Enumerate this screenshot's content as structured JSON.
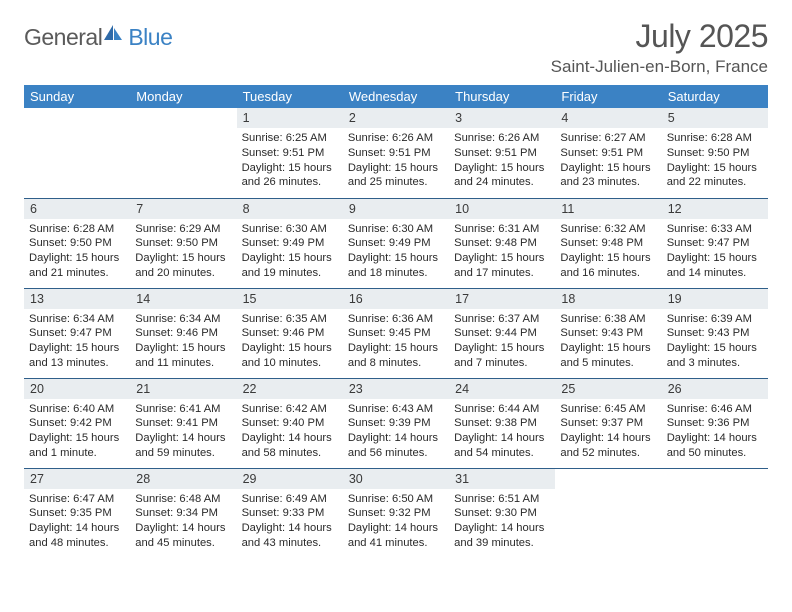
{
  "logo": {
    "general": "General",
    "blue": "Blue"
  },
  "title": "July 2025",
  "location": "Saint-Julien-en-Born, France",
  "colors": {
    "header_bg": "#3b82c4",
    "header_text": "#ffffff",
    "daynum_bg": "#e9edf0",
    "row_border": "#2f5f8a",
    "text": "#2a2a2a",
    "title_text": "#555555"
  },
  "weekdays": [
    "Sunday",
    "Monday",
    "Tuesday",
    "Wednesday",
    "Thursday",
    "Friday",
    "Saturday"
  ],
  "first_weekday_index": 2,
  "days": [
    {
      "n": 1,
      "sunrise": "6:25 AM",
      "sunset": "9:51 PM",
      "daylight": "15 hours and 26 minutes."
    },
    {
      "n": 2,
      "sunrise": "6:26 AM",
      "sunset": "9:51 PM",
      "daylight": "15 hours and 25 minutes."
    },
    {
      "n": 3,
      "sunrise": "6:26 AM",
      "sunset": "9:51 PM",
      "daylight": "15 hours and 24 minutes."
    },
    {
      "n": 4,
      "sunrise": "6:27 AM",
      "sunset": "9:51 PM",
      "daylight": "15 hours and 23 minutes."
    },
    {
      "n": 5,
      "sunrise": "6:28 AM",
      "sunset": "9:50 PM",
      "daylight": "15 hours and 22 minutes."
    },
    {
      "n": 6,
      "sunrise": "6:28 AM",
      "sunset": "9:50 PM",
      "daylight": "15 hours and 21 minutes."
    },
    {
      "n": 7,
      "sunrise": "6:29 AM",
      "sunset": "9:50 PM",
      "daylight": "15 hours and 20 minutes."
    },
    {
      "n": 8,
      "sunrise": "6:30 AM",
      "sunset": "9:49 PM",
      "daylight": "15 hours and 19 minutes."
    },
    {
      "n": 9,
      "sunrise": "6:30 AM",
      "sunset": "9:49 PM",
      "daylight": "15 hours and 18 minutes."
    },
    {
      "n": 10,
      "sunrise": "6:31 AM",
      "sunset": "9:48 PM",
      "daylight": "15 hours and 17 minutes."
    },
    {
      "n": 11,
      "sunrise": "6:32 AM",
      "sunset": "9:48 PM",
      "daylight": "15 hours and 16 minutes."
    },
    {
      "n": 12,
      "sunrise": "6:33 AM",
      "sunset": "9:47 PM",
      "daylight": "15 hours and 14 minutes."
    },
    {
      "n": 13,
      "sunrise": "6:34 AM",
      "sunset": "9:47 PM",
      "daylight": "15 hours and 13 minutes."
    },
    {
      "n": 14,
      "sunrise": "6:34 AM",
      "sunset": "9:46 PM",
      "daylight": "15 hours and 11 minutes."
    },
    {
      "n": 15,
      "sunrise": "6:35 AM",
      "sunset": "9:46 PM",
      "daylight": "15 hours and 10 minutes."
    },
    {
      "n": 16,
      "sunrise": "6:36 AM",
      "sunset": "9:45 PM",
      "daylight": "15 hours and 8 minutes."
    },
    {
      "n": 17,
      "sunrise": "6:37 AM",
      "sunset": "9:44 PM",
      "daylight": "15 hours and 7 minutes."
    },
    {
      "n": 18,
      "sunrise": "6:38 AM",
      "sunset": "9:43 PM",
      "daylight": "15 hours and 5 minutes."
    },
    {
      "n": 19,
      "sunrise": "6:39 AM",
      "sunset": "9:43 PM",
      "daylight": "15 hours and 3 minutes."
    },
    {
      "n": 20,
      "sunrise": "6:40 AM",
      "sunset": "9:42 PM",
      "daylight": "15 hours and 1 minute."
    },
    {
      "n": 21,
      "sunrise": "6:41 AM",
      "sunset": "9:41 PM",
      "daylight": "14 hours and 59 minutes."
    },
    {
      "n": 22,
      "sunrise": "6:42 AM",
      "sunset": "9:40 PM",
      "daylight": "14 hours and 58 minutes."
    },
    {
      "n": 23,
      "sunrise": "6:43 AM",
      "sunset": "9:39 PM",
      "daylight": "14 hours and 56 minutes."
    },
    {
      "n": 24,
      "sunrise": "6:44 AM",
      "sunset": "9:38 PM",
      "daylight": "14 hours and 54 minutes."
    },
    {
      "n": 25,
      "sunrise": "6:45 AM",
      "sunset": "9:37 PM",
      "daylight": "14 hours and 52 minutes."
    },
    {
      "n": 26,
      "sunrise": "6:46 AM",
      "sunset": "9:36 PM",
      "daylight": "14 hours and 50 minutes."
    },
    {
      "n": 27,
      "sunrise": "6:47 AM",
      "sunset": "9:35 PM",
      "daylight": "14 hours and 48 minutes."
    },
    {
      "n": 28,
      "sunrise": "6:48 AM",
      "sunset": "9:34 PM",
      "daylight": "14 hours and 45 minutes."
    },
    {
      "n": 29,
      "sunrise": "6:49 AM",
      "sunset": "9:33 PM",
      "daylight": "14 hours and 43 minutes."
    },
    {
      "n": 30,
      "sunrise": "6:50 AM",
      "sunset": "9:32 PM",
      "daylight": "14 hours and 41 minutes."
    },
    {
      "n": 31,
      "sunrise": "6:51 AM",
      "sunset": "9:30 PM",
      "daylight": "14 hours and 39 minutes."
    }
  ],
  "labels": {
    "sunrise": "Sunrise:",
    "sunset": "Sunset:",
    "daylight": "Daylight:"
  }
}
